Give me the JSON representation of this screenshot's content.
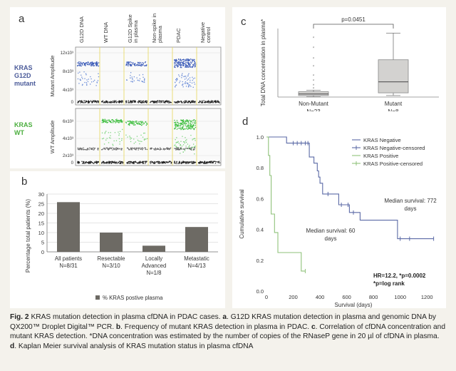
{
  "panel_a": {
    "label": "a",
    "columns": [
      "G12D DNA",
      "WT DNA",
      "G12D Spike in plasma",
      "Non-spike in plasma",
      "PDAC",
      "Negative control"
    ],
    "row1": {
      "label_lines": [
        "KRAS",
        "G12D",
        "mutant"
      ],
      "ylabel": "Mutant Amplitude",
      "ticks": [
        "12x10³",
        "8x10³",
        "4x10³",
        "0"
      ]
    },
    "row2": {
      "label_lines": [
        "KRAS",
        "WT"
      ],
      "ylabel": "WT Amplitude",
      "ticks": [
        "6x10³",
        "4x10³",
        "2x10³",
        "0"
      ]
    }
  },
  "panel_b": {
    "label": "b"
  },
  "panel_c": {
    "label": "c",
    "pvalue": "p=0.0451"
  },
  "panel_d": {
    "label": "d"
  },
  "chart_data": [
    {
      "type": "bar",
      "id": "b",
      "title": "",
      "ylabel": "Percentage total patients (%)",
      "ylim": [
        0,
        30
      ],
      "yticks": [
        0,
        5,
        10,
        15,
        20,
        25,
        30
      ],
      "categories": [
        "All patients",
        "Resectable",
        "Locally Advanced",
        "Metastatic"
      ],
      "category_lines": [
        [
          "All patients",
          "N=8/31"
        ],
        [
          "Resectable",
          "N=3/10"
        ],
        [
          "Locally",
          "Advanced",
          "N=1/8"
        ],
        [
          "Metastatic",
          "N=4/13"
        ]
      ],
      "values": [
        25.8,
        10,
        3.2,
        12.9
      ],
      "legend": [
        "% KRAS postive plasma"
      ],
      "color": "#6d6a64"
    },
    {
      "type": "box",
      "id": "c",
      "ylabel": "Total DNA concentration in plasma*",
      "yticks": [],
      "categories": [
        "Non-Mutant",
        "Mutant"
      ],
      "ns": [
        "N=23",
        "N=8"
      ],
      "ylim": [
        0,
        1800
      ],
      "boxes": [
        {
          "min": 10,
          "q1": 40,
          "median": 80,
          "q3": 140,
          "max": 180,
          "outliers": [
            220,
            300,
            420,
            550,
            800,
            1000,
            1280,
            1550
          ]
        },
        {
          "min": 40,
          "q1": 110,
          "median": 400,
          "q3": 980,
          "max": 1680,
          "outliers": []
        }
      ],
      "annotation": "p=0.0451"
    },
    {
      "type": "line",
      "id": "d",
      "subtype": "kaplan-meier",
      "xlabel": "Survival (days)",
      "ylabel": "Cumulative survival",
      "xlim": [
        0,
        1300
      ],
      "ylim": [
        0,
        1.0
      ],
      "xticks": [
        0,
        200,
        400,
        600,
        800,
        1000,
        1200
      ],
      "yticks": [
        0.0,
        0.2,
        0.4,
        0.6,
        0.8,
        1.0
      ],
      "legend": [
        "KRAS Negative",
        "KRAS Negative-censored",
        "KRAS Positive",
        "KRAS Positive-censored"
      ],
      "series": [
        {
          "name": "KRAS Negative",
          "color": "#5b6aa6",
          "steps": [
            [
              0,
              1.0
            ],
            [
              150,
              0.96
            ],
            [
              320,
              0.87
            ],
            [
              355,
              0.83
            ],
            [
              380,
              0.78
            ],
            [
              390,
              0.74
            ],
            [
              400,
              0.7
            ],
            [
              420,
              0.63
            ],
            [
              540,
              0.56
            ],
            [
              620,
              0.51
            ],
            [
              700,
              0.46
            ],
            [
              980,
              0.34
            ],
            [
              1250,
              0.34
            ]
          ],
          "censored": [
            [
              200,
              0.96
            ],
            [
              230,
              0.96
            ],
            [
              260,
              0.96
            ],
            [
              290,
              0.96
            ],
            [
              310,
              0.96
            ],
            [
              460,
              0.63
            ],
            [
              560,
              0.56
            ],
            [
              610,
              0.56
            ],
            [
              650,
              0.51
            ],
            [
              1000,
              0.34
            ],
            [
              1070,
              0.34
            ],
            [
              1250,
              0.34
            ]
          ]
        },
        {
          "name": "KRAS Positive",
          "color": "#8fc27a",
          "steps": [
            [
              0,
              1.0
            ],
            [
              15,
              0.88
            ],
            [
              25,
              0.75
            ],
            [
              35,
              0.5
            ],
            [
              60,
              0.38
            ],
            [
              85,
              0.25
            ],
            [
              260,
              0.13
            ],
            [
              290,
              0.13
            ]
          ],
          "censored": [
            [
              290,
              0.13
            ]
          ]
        }
      ],
      "annotations": {
        "neg_median": [
          "Median survival: 772",
          "days"
        ],
        "pos_median": [
          "Median survival: 60",
          "days"
        ],
        "stats": [
          "HR=12.2, *p=0.0002",
          "*p=log rank"
        ]
      }
    }
  ],
  "caption": {
    "fig": "Fig. 2",
    "t1": " KRAS mutation detection in plasma cfDNA in PDAC cases. ",
    "a": "a",
    "t2": ". G12D KRAS mutation detection in plasma and genomic DNA by QX200™ Droplet Digital™ PCR. ",
    "b": "b",
    "t3": ". Frequency of mutant KRAS detection in plasma in PDAC. ",
    "c": "c",
    "t4": ". Correlation of cfDNA concentration and mutant KRAS detection. *DNA concentration was estimated by the number of copies of the RNaseP gene in 20 µl of cfDNA in plasma. ",
    "d": "d",
    "t5": ". Kaplan Meier survival analysis of KRAS mutation status in plasma cfDNA"
  }
}
